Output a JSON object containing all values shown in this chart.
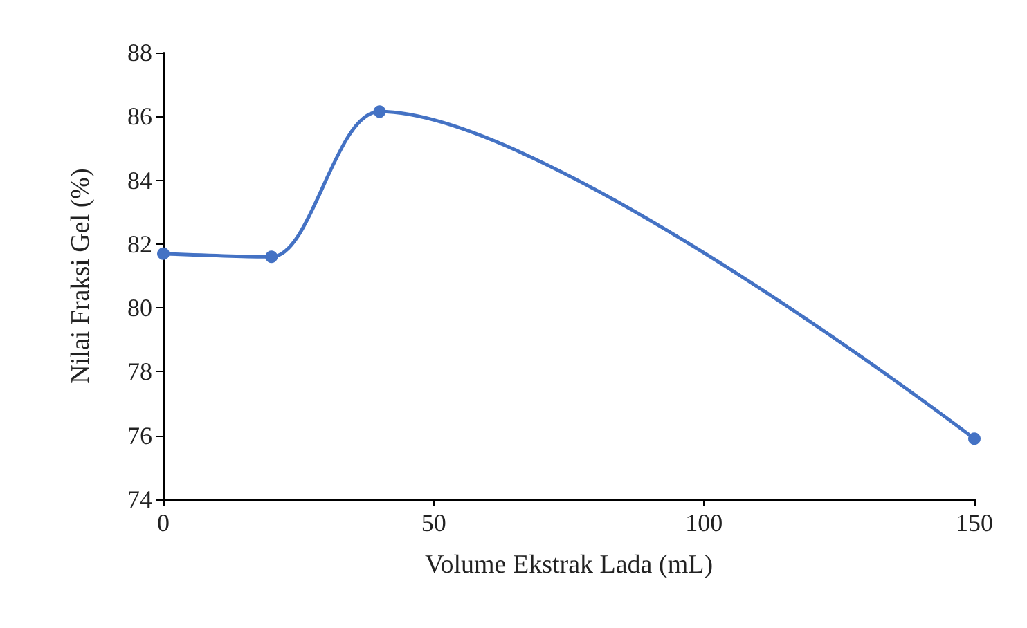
{
  "chart_data": {
    "type": "line",
    "xlabel": "Volume Ekstrak Lada (mL)",
    "ylabel": "Nilai Fraksi Gel (%)",
    "x": [
      0,
      20,
      40,
      150
    ],
    "series": [
      {
        "color": "#4472c4",
        "values": [
          81.7,
          81.6,
          86.15,
          75.9
        ]
      }
    ],
    "xlim": [
      0,
      150
    ],
    "xticks": [
      0,
      50,
      100,
      150
    ],
    "ylim": [
      74,
      88
    ],
    "yticks": [
      74,
      76,
      78,
      80,
      82,
      84,
      86,
      88
    ],
    "grid": false,
    "marker": "circle",
    "line_style": "solid"
  }
}
